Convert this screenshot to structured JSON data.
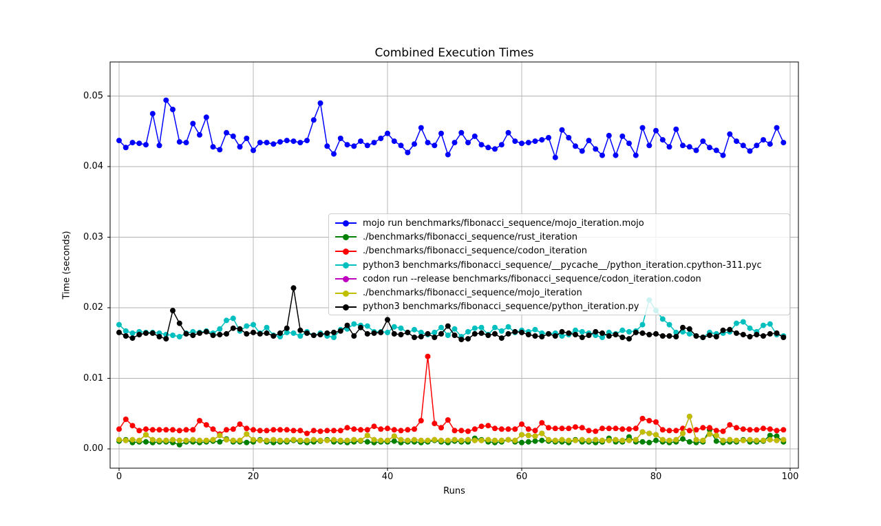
{
  "window": {
    "background": "#ffffff"
  },
  "chart_data": {
    "type": "line",
    "title": "Combined Execution Times",
    "xlabel": "Runs",
    "ylabel": "Time (seconds)",
    "runs": 100,
    "grid": true,
    "gridcolor": "#b0b0b0",
    "xlim": [
      -1.3,
      101.3
    ],
    "ylim": [
      -0.0027,
      0.0548
    ],
    "xtick_values": [
      0,
      20,
      40,
      60,
      80,
      100
    ],
    "xtick_labels": [
      "0",
      "20",
      "40",
      "60",
      "80",
      "100"
    ],
    "ytick_values": [
      0,
      0.01,
      0.02,
      0.03,
      0.04,
      0.05
    ],
    "ytick_labels": [
      "0.00",
      "0.01",
      "0.02",
      "0.03",
      "0.04",
      "0.05"
    ],
    "legend_position": "inside center-right, semi-transparent white box",
    "series": [
      {
        "name": "mojo run benchmarks/fibonacci_sequence/mojo_iteration.mojo",
        "color": "#0000ff",
        "values": [
          0.0437,
          0.0427,
          0.0434,
          0.0433,
          0.0431,
          0.0475,
          0.043,
          0.0494,
          0.0481,
          0.0435,
          0.0434,
          0.0461,
          0.0445,
          0.047,
          0.0428,
          0.0424,
          0.0448,
          0.0443,
          0.0428,
          0.044,
          0.0423,
          0.0434,
          0.0434,
          0.0432,
          0.0435,
          0.0437,
          0.0436,
          0.0434,
          0.0437,
          0.0466,
          0.049,
          0.0429,
          0.0418,
          0.044,
          0.0431,
          0.0429,
          0.0436,
          0.043,
          0.0434,
          0.044,
          0.0447,
          0.0436,
          0.043,
          0.042,
          0.0432,
          0.0455,
          0.0434,
          0.043,
          0.0447,
          0.0417,
          0.0434,
          0.0448,
          0.0434,
          0.0443,
          0.0431,
          0.0427,
          0.0425,
          0.0431,
          0.0448,
          0.0436,
          0.0433,
          0.0434,
          0.0436,
          0.0438,
          0.0441,
          0.0413,
          0.0452,
          0.0441,
          0.0429,
          0.0422,
          0.0437,
          0.0425,
          0.0416,
          0.0444,
          0.0416,
          0.0443,
          0.0433,
          0.0416,
          0.0455,
          0.043,
          0.0451,
          0.0438,
          0.0428,
          0.0453,
          0.043,
          0.0428,
          0.0423,
          0.0436,
          0.0427,
          0.0423,
          0.0416,
          0.0446,
          0.0436,
          0.043,
          0.0422,
          0.043,
          0.0438,
          0.0432,
          0.0455,
          0.0434
        ]
      },
      {
        "name": "./benchmarks/fibonacci_sequence/rust_iteration",
        "color": "#008000",
        "values": [
          0.0011,
          0.0013,
          0.0009,
          0.001,
          0.001,
          0.0009,
          0.001,
          0.001,
          0.0009,
          0.0006,
          0.001,
          0.001,
          0.0009,
          0.001,
          0.0011,
          0.001,
          0.0014,
          0.001,
          0.001,
          0.0009,
          0.001,
          0.0013,
          0.001,
          0.0009,
          0.001,
          0.001,
          0.0012,
          0.001,
          0.0009,
          0.001,
          0.0011,
          0.0013,
          0.001,
          0.001,
          0.0009,
          0.001,
          0.0011,
          0.001,
          0.0009,
          0.001,
          0.001,
          0.0011,
          0.0009,
          0.001,
          0.001,
          0.0009,
          0.001,
          0.0012,
          0.001,
          0.0009,
          0.0011,
          0.001,
          0.001,
          0.0015,
          0.0013,
          0.001,
          0.0009,
          0.001,
          0.0013,
          0.001,
          0.0009,
          0.001,
          0.0011,
          0.0012,
          0.0011,
          0.001,
          0.001,
          0.0009,
          0.0013,
          0.001,
          0.001,
          0.0009,
          0.001,
          0.0015,
          0.001,
          0.001,
          0.0017,
          0.001,
          0.001,
          0.0009,
          0.0012,
          0.001,
          0.0009,
          0.001,
          0.0014,
          0.001,
          0.0009,
          0.001,
          0.0027,
          0.0011,
          0.0009,
          0.001,
          0.001,
          0.0013,
          0.001,
          0.001,
          0.0011,
          0.0019,
          0.0018,
          0.001
        ]
      },
      {
        "name": "./benchmarks/fibonacci_sequence/codon_iteration",
        "color": "#ff0000",
        "values": [
          0.0028,
          0.0042,
          0.0033,
          0.0026,
          0.0028,
          0.0027,
          0.0027,
          0.0027,
          0.0027,
          0.0026,
          0.0027,
          0.0027,
          0.004,
          0.0034,
          0.0028,
          0.0021,
          0.0027,
          0.0028,
          0.0035,
          0.0029,
          0.0027,
          0.0026,
          0.0026,
          0.0027,
          0.0027,
          0.0027,
          0.0026,
          0.0026,
          0.0022,
          0.0026,
          0.0025,
          0.0026,
          0.0026,
          0.0026,
          0.003,
          0.0028,
          0.0027,
          0.0027,
          0.0032,
          0.0028,
          0.0029,
          0.0027,
          0.0026,
          0.0027,
          0.0028,
          0.004,
          0.0131,
          0.0036,
          0.003,
          0.0041,
          0.0026,
          0.0026,
          0.0025,
          0.0028,
          0.0032,
          0.0033,
          0.0029,
          0.0028,
          0.0028,
          0.0028,
          0.0035,
          0.0028,
          0.0026,
          0.0037,
          0.003,
          0.0029,
          0.0029,
          0.0029,
          0.0031,
          0.003,
          0.0026,
          0.0025,
          0.0029,
          0.0029,
          0.0029,
          0.0028,
          0.0028,
          0.0029,
          0.0043,
          0.004,
          0.0038,
          0.0027,
          0.0026,
          0.0026,
          0.0029,
          0.0026,
          0.0027,
          0.003,
          0.003,
          0.0026,
          0.0025,
          0.0034,
          0.003,
          0.0028,
          0.0027,
          0.0027,
          0.0029,
          0.0028,
          0.0026,
          0.0027
        ]
      },
      {
        "name": "python3 benchmarks/fibonacci_sequence/__pycache__/python_iteration.cpython-311.pyc",
        "color": "#00bfbf",
        "values": [
          0.0176,
          0.0167,
          0.0164,
          0.0166,
          0.0165,
          0.0165,
          0.0164,
          0.0162,
          0.0161,
          0.0159,
          0.0164,
          0.0166,
          0.0165,
          0.0167,
          0.0164,
          0.017,
          0.0182,
          0.0185,
          0.0167,
          0.0174,
          0.0176,
          0.0164,
          0.0172,
          0.0161,
          0.0159,
          0.0165,
          0.0164,
          0.016,
          0.0166,
          0.0161,
          0.0164,
          0.016,
          0.0158,
          0.0169,
          0.017,
          0.0177,
          0.0175,
          0.0174,
          0.0166,
          0.0166,
          0.0165,
          0.0173,
          0.0171,
          0.0165,
          0.0169,
          0.0165,
          0.0162,
          0.0165,
          0.0172,
          0.0161,
          0.017,
          0.0159,
          0.0166,
          0.0171,
          0.0172,
          0.0162,
          0.0172,
          0.0167,
          0.0173,
          0.0165,
          0.0168,
          0.0166,
          0.0169,
          0.0164,
          0.0163,
          0.0164,
          0.016,
          0.0162,
          0.0168,
          0.0166,
          0.0164,
          0.0161,
          0.0158,
          0.0165,
          0.0163,
          0.0168,
          0.0166,
          0.0167,
          0.0176,
          0.0211,
          0.0196,
          0.0184,
          0.0176,
          0.0165,
          0.0166,
          0.0163,
          0.016,
          0.0158,
          0.0165,
          0.0163,
          0.0164,
          0.0166,
          0.0178,
          0.018,
          0.0171,
          0.0166,
          0.0175,
          0.0177,
          0.0162,
          0.016
        ]
      },
      {
        "name": "codon run --release benchmarks/fibonacci_sequence/codon_iteration.codon",
        "color": "#bf00bf",
        "note": "hidden in plot beneath the yellow series",
        "values": [
          0.0013,
          0.0012,
          0.0013,
          0.0012,
          0.002,
          0.0013,
          0.0012,
          0.0012,
          0.0013,
          0.0012,
          0.0012,
          0.0013,
          0.0012,
          0.0012,
          0.0013,
          0.0019,
          0.0013,
          0.0012,
          0.0012,
          0.0021,
          0.0013,
          0.0012,
          0.0012,
          0.0013,
          0.0012,
          0.0012,
          0.0013,
          0.0012,
          0.0012,
          0.0013,
          0.0012,
          0.0012,
          0.0013,
          0.0012,
          0.0012,
          0.0013,
          0.0012,
          0.0019,
          0.0013,
          0.0012,
          0.0012,
          0.0018,
          0.0013,
          0.0012,
          0.0013,
          0.0012,
          0.0012,
          0.0013,
          0.0012,
          0.0012,
          0.0013,
          0.0012,
          0.0013,
          0.0012,
          0.0012,
          0.0013,
          0.0012,
          0.0012,
          0.0013,
          0.0012,
          0.002,
          0.0019,
          0.0018,
          0.0022,
          0.0013,
          0.0012,
          0.0013,
          0.0012,
          0.0012,
          0.0013,
          0.0012,
          0.0013,
          0.0012,
          0.0012,
          0.0013,
          0.0012,
          0.0012,
          0.0013,
          0.0024,
          0.0022,
          0.002,
          0.0013,
          0.0012,
          0.0013,
          0.0022,
          0.0046,
          0.0013,
          0.0012,
          0.0021,
          0.0019,
          0.0012,
          0.0013,
          0.0012,
          0.0012,
          0.0013,
          0.0012,
          0.0012,
          0.0013,
          0.0012,
          0.0013
        ]
      },
      {
        "name": "./benchmarks/fibonacci_sequence/mojo_iteration",
        "color": "#bfbf00",
        "values": [
          0.0013,
          0.0012,
          0.0013,
          0.0012,
          0.002,
          0.0013,
          0.0012,
          0.0012,
          0.0013,
          0.0012,
          0.0012,
          0.0013,
          0.0012,
          0.0012,
          0.0013,
          0.0019,
          0.0013,
          0.0012,
          0.0012,
          0.0021,
          0.0013,
          0.0012,
          0.0012,
          0.0013,
          0.0012,
          0.0012,
          0.0013,
          0.0012,
          0.0012,
          0.0013,
          0.0012,
          0.0012,
          0.0013,
          0.0012,
          0.0012,
          0.0013,
          0.0012,
          0.0019,
          0.0013,
          0.0012,
          0.0012,
          0.0018,
          0.0013,
          0.0012,
          0.0013,
          0.0012,
          0.0012,
          0.0013,
          0.0012,
          0.0012,
          0.0013,
          0.0012,
          0.0013,
          0.0012,
          0.0012,
          0.0013,
          0.0012,
          0.0012,
          0.0013,
          0.0012,
          0.002,
          0.0019,
          0.0018,
          0.0022,
          0.0013,
          0.0012,
          0.0013,
          0.0012,
          0.0012,
          0.0013,
          0.0012,
          0.0013,
          0.0012,
          0.0012,
          0.0013,
          0.0012,
          0.0012,
          0.0013,
          0.0024,
          0.0022,
          0.002,
          0.0013,
          0.0012,
          0.0013,
          0.0022,
          0.0046,
          0.0013,
          0.0012,
          0.0021,
          0.0019,
          0.0012,
          0.0013,
          0.0012,
          0.0012,
          0.0013,
          0.0012,
          0.0012,
          0.0013,
          0.0012,
          0.0013
        ]
      },
      {
        "name": "python3 benchmarks/fibonacci_sequence/python_iteration.py",
        "color": "#000000",
        "values": [
          0.0165,
          0.016,
          0.0157,
          0.0162,
          0.0164,
          0.0164,
          0.0159,
          0.0156,
          0.0196,
          0.0178,
          0.0163,
          0.0161,
          0.0164,
          0.0166,
          0.0161,
          0.0162,
          0.0163,
          0.0171,
          0.017,
          0.0163,
          0.0165,
          0.0163,
          0.0164,
          0.016,
          0.0164,
          0.0171,
          0.0228,
          0.0168,
          0.0164,
          0.0161,
          0.0162,
          0.0164,
          0.0165,
          0.0167,
          0.0175,
          0.016,
          0.0172,
          0.0163,
          0.0164,
          0.0165,
          0.0183,
          0.0163,
          0.0162,
          0.0165,
          0.0158,
          0.0159,
          0.0163,
          0.0158,
          0.0163,
          0.0174,
          0.0161,
          0.0155,
          0.0156,
          0.0163,
          0.0164,
          0.0161,
          0.0163,
          0.0157,
          0.0163,
          0.0166,
          0.0165,
          0.0162,
          0.016,
          0.0159,
          0.0163,
          0.016,
          0.0166,
          0.0164,
          0.0162,
          0.0158,
          0.0161,
          0.0166,
          0.0164,
          0.016,
          0.0162,
          0.0158,
          0.0156,
          0.0165,
          0.0164,
          0.0162,
          0.0163,
          0.016,
          0.016,
          0.0159,
          0.0172,
          0.017,
          0.016,
          0.0158,
          0.0161,
          0.0159,
          0.0168,
          0.0169,
          0.0164,
          0.0162,
          0.0159,
          0.0162,
          0.016,
          0.0163,
          0.0164,
          0.0158
        ]
      }
    ]
  }
}
